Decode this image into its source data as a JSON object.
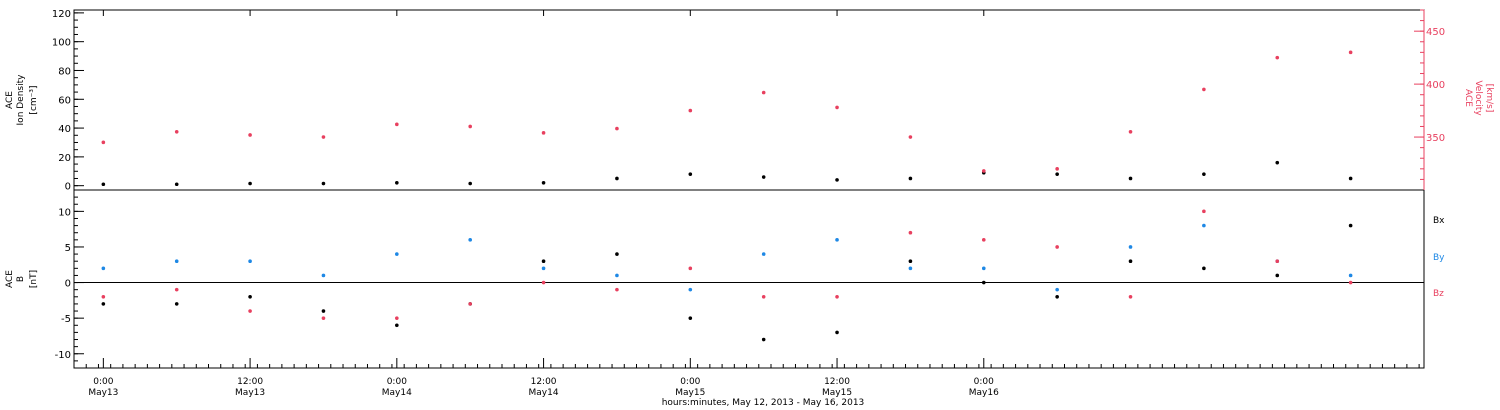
{
  "chart_data": [
    {
      "type": "scatter",
      "panel": "ion-density-velocity",
      "ylabel_left": [
        "ACE",
        "Ion Density",
        "[cm⁻³]"
      ],
      "ylabel_right": [
        "ACE",
        "Velocity",
        "[km/s]"
      ],
      "ylim_left": [
        -3,
        122
      ],
      "ylim_right": [
        300,
        470
      ],
      "yticks_left": [
        0,
        20,
        40,
        60,
        80,
        100,
        120
      ],
      "yticks_right": [
        350,
        400,
        450
      ],
      "series": [
        {
          "name": "Ion Density",
          "axis": "left",
          "color": "#000000",
          "x": [
            -0.5,
            -0.25,
            0,
            0.25,
            0.5,
            0.75,
            1,
            1.25,
            1.5,
            1.75,
            2,
            2.25,
            2.5,
            2.75,
            3,
            3.25,
            3.5,
            3.75
          ],
          "y": [
            1,
            1,
            1.5,
            1.5,
            2,
            1.5,
            2,
            5,
            8,
            6,
            4,
            5,
            9,
            8,
            5,
            8,
            16,
            5
          ]
        },
        {
          "name": "Velocity",
          "axis": "right",
          "color": "#e8405f",
          "x": [
            -0.5,
            -0.25,
            0,
            0.25,
            0.5,
            0.75,
            1,
            1.25,
            1.5,
            1.75,
            2,
            2.25,
            2.5,
            2.75,
            3,
            3.25,
            3.5,
            3.75
          ],
          "y": [
            345,
            355,
            352,
            350,
            362,
            360,
            354,
            358,
            375,
            392,
            378,
            350,
            318,
            320,
            355,
            395,
            425,
            430
          ]
        }
      ]
    },
    {
      "type": "scatter",
      "panel": "imf-components",
      "ylabel_left": [
        "ACE",
        "B",
        "[nT]"
      ],
      "ylim": [
        -12,
        13
      ],
      "yticks_left": [
        -10,
        -5,
        0,
        5,
        10
      ],
      "legend": [
        "Bx",
        "By",
        "Bz"
      ],
      "series": [
        {
          "name": "Bx",
          "color": "#000000",
          "x": [
            -0.5,
            -0.25,
            0,
            0.25,
            0.5,
            0.75,
            1,
            1.25,
            1.5,
            1.75,
            2,
            2.25,
            2.5,
            2.75,
            3,
            3.25,
            3.5,
            3.75
          ],
          "y": [
            -3,
            -3,
            -2,
            -4,
            -6,
            -3,
            3,
            4,
            -5,
            -8,
            -7,
            3,
            0,
            -2,
            3,
            2,
            1,
            8
          ]
        },
        {
          "name": "By",
          "color": "#1e88e5",
          "x": [
            -0.5,
            -0.25,
            0,
            0.25,
            0.5,
            0.75,
            1,
            1.25,
            1.5,
            1.75,
            2,
            2.25,
            2.5,
            2.75,
            3,
            3.25,
            3.5,
            3.75
          ],
          "y": [
            2,
            3,
            3,
            1,
            4,
            6,
            2,
            1,
            -1,
            4,
            6,
            2,
            2,
            -1,
            5,
            8,
            3,
            1
          ]
        },
        {
          "name": "Bz",
          "color": "#e8405f",
          "x": [
            -0.5,
            -0.25,
            0,
            0.25,
            0.5,
            0.75,
            1,
            1.25,
            1.5,
            1.75,
            2,
            2.25,
            2.5,
            2.75,
            3,
            3.25,
            3.5,
            3.75
          ],
          "y": [
            -2,
            -1,
            -4,
            -5,
            -5,
            -3,
            0,
            -1,
            2,
            -2,
            -2,
            7,
            6,
            5,
            -2,
            10,
            3,
            0
          ]
        }
      ]
    }
  ],
  "x_axis": {
    "range": [
      -0.6,
      4.0
    ],
    "ticks": [
      {
        "x": -0.5,
        "label": "0:00",
        "date": "May13"
      },
      {
        "x": 0,
        "label": "12:00",
        "date": "May13"
      },
      {
        "x": 0.5,
        "label": "0:00",
        "date": "May14"
      },
      {
        "x": 1,
        "label": "12:00",
        "date": "May14"
      },
      {
        "x": 1.5,
        "label": "0:00",
        "date": "May15"
      },
      {
        "x": 2,
        "label": "12:00",
        "date": "May15"
      },
      {
        "x": 2.5,
        "label": "0:00",
        "date": "May16"
      }
    ],
    "title": "hours:minutes, May 12, 2013 - May 16, 2013"
  },
  "text": {
    "xtick_labels": [
      "0:00",
      "12:00",
      "0:00",
      "12:00",
      "0:00",
      "12:00",
      "0:00"
    ],
    "xtick_dates": [
      "May13",
      "May13",
      "May14",
      "May14",
      "May15",
      "May15",
      "May16"
    ],
    "xaxis_title": "hours:minutes, May 12, 2013 - May 16, 2013",
    "top_ylabel_left": [
      "ACE",
      "Ion Density",
      "[cm⁻³]"
    ],
    "top_ylabel_right": [
      "ACE",
      "Velocity",
      "[km/s]"
    ],
    "bottom_ylabel_left": [
      "ACE",
      "B",
      "[nT]"
    ],
    "top_ytick_left": [
      "0",
      "20",
      "40",
      "60",
      "80",
      "100",
      "120"
    ],
    "top_ytick_right": [
      "350",
      "400",
      "450"
    ],
    "bottom_ytick_left": [
      "-10",
      "-5",
      "0",
      "5",
      "10"
    ],
    "legend": [
      "Bx",
      "By",
      "Bz"
    ]
  },
  "colors": {
    "black": "#000000",
    "pink": "#e8405f",
    "blue": "#1e88e5"
  }
}
